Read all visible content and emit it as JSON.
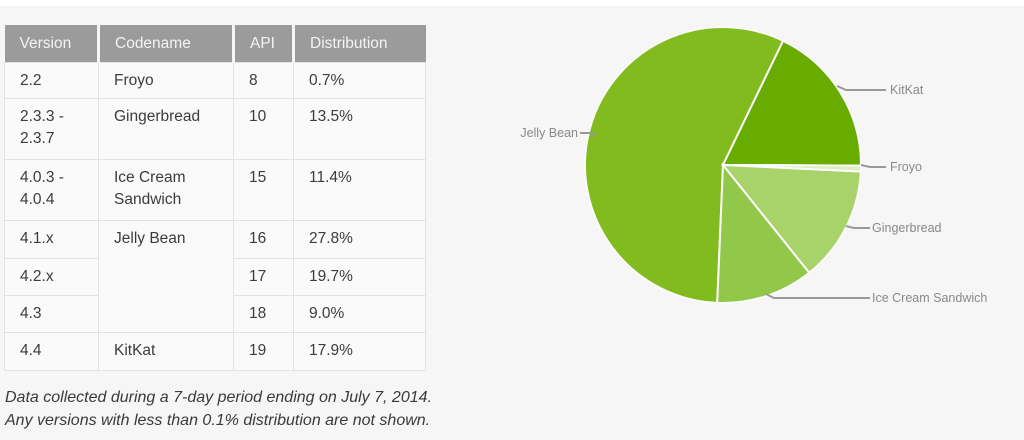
{
  "page": {
    "background": "#F6F6F6"
  },
  "table": {
    "header_bg": "#9B9B9B",
    "version_link_color": "#4E92B3",
    "headers": [
      "Version",
      "Codename",
      "API",
      "Distribution"
    ],
    "rows": [
      {
        "version": "2.2",
        "codename": "Froyo",
        "api": "8",
        "distribution": "0.7%"
      },
      {
        "version": "2.3.3 - 2.3.7",
        "codename": "Gingerbread",
        "api": "10",
        "distribution": "13.5%"
      },
      {
        "version": "4.0.3 - 4.0.4",
        "codename": "Ice Cream Sandwich",
        "api": "15",
        "distribution": "11.4%"
      },
      {
        "version": "4.1.x",
        "codename": "Jelly Bean",
        "api": "16",
        "distribution": "27.8%"
      },
      {
        "version": "4.2.x",
        "api": "17",
        "distribution": "19.7%"
      },
      {
        "version": "4.3",
        "api": "18",
        "distribution": "9.0%"
      },
      {
        "version": "4.4",
        "codename": "KitKat",
        "api": "19",
        "distribution": "17.9%"
      }
    ]
  },
  "chart_data": {
    "type": "pie",
    "title": "",
    "unit": "%",
    "direction": "clockwise",
    "start_angle_deg": 182.4,
    "label_style": "leader-lines",
    "slices": [
      {
        "label": "Jelly Bean",
        "value": 56.5,
        "color": "#82BB1E"
      },
      {
        "label": "KitKat",
        "value": 17.9,
        "color": "#68AC00"
      },
      {
        "label": "Froyo",
        "value": 0.7,
        "color": "#DCEEBE"
      },
      {
        "label": "Gingerbread",
        "value": 13.5,
        "color": "#A7D36A"
      },
      {
        "label": "Ice Cream Sandwich",
        "value": 11.4,
        "color": "#92C84A"
      }
    ]
  },
  "footnote": {
    "line1": "Data collected during a 7-day period ending on July 7, 2014.",
    "line2": "Any versions with less than 0.1% distribution are not shown."
  }
}
